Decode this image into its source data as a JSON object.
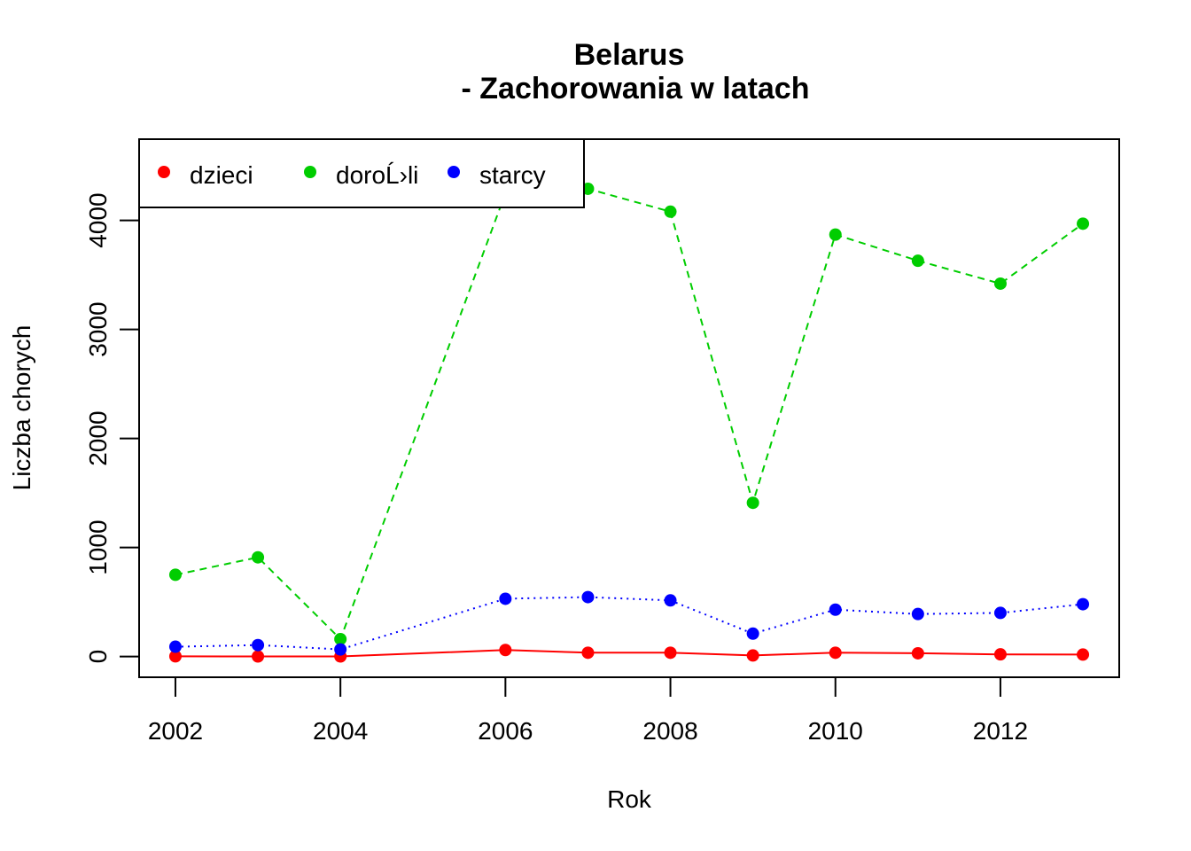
{
  "chart_data": {
    "type": "line",
    "title": "Belarus",
    "subtitle": "- Zachorowania w latach",
    "xlabel": "Rok",
    "ylabel": "Liczba chorych",
    "x": [
      2002,
      2003,
      2004,
      2006,
      2007,
      2008,
      2009,
      2010,
      2011,
      2012,
      2013
    ],
    "xlim": [
      2001.56,
      2013.44
    ],
    "ylim": [
      -190,
      4745
    ],
    "x_ticks": [
      2002,
      2004,
      2006,
      2008,
      2010,
      2012
    ],
    "y_ticks": [
      0,
      1000,
      2000,
      3000,
      4000
    ],
    "grid": false,
    "legend_position": "top-left",
    "series": [
      {
        "name": "dzieci",
        "color": "#FF0000",
        "line_style": "solid",
        "values": [
          2,
          1,
          1,
          60,
          35,
          35,
          10,
          35,
          30,
          20,
          18
        ]
      },
      {
        "name": "doroĹ›li",
        "color": "#00CD00",
        "line_style": "dashed",
        "values": [
          750,
          910,
          160,
          4250,
          4290,
          4080,
          1410,
          3870,
          3630,
          3420,
          3970
        ]
      },
      {
        "name": "starcy",
        "color": "#0000FF",
        "line_style": "dotted",
        "values": [
          90,
          105,
          65,
          530,
          545,
          515,
          210,
          430,
          390,
          400,
          480
        ]
      }
    ]
  }
}
